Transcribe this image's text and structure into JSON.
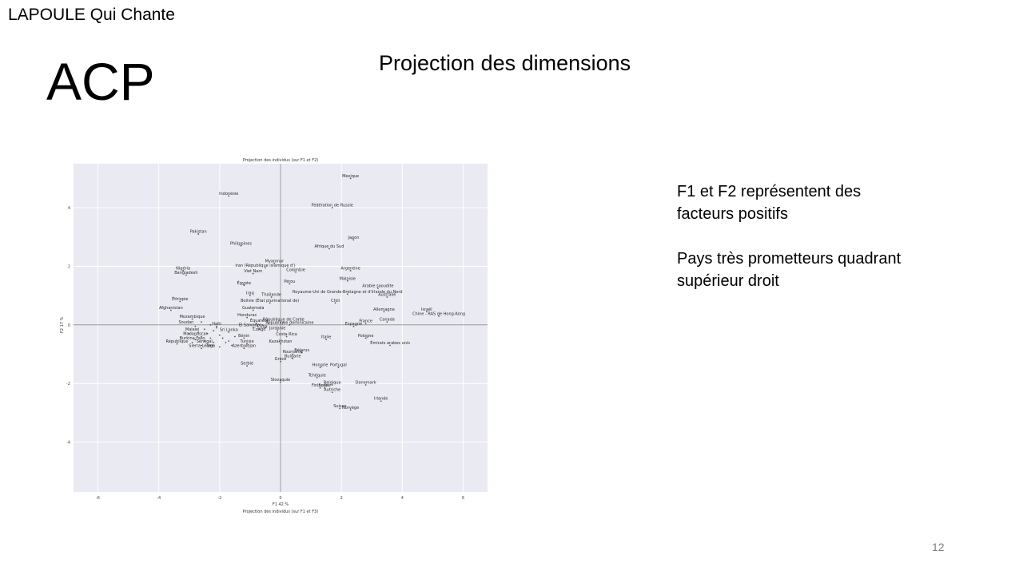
{
  "header": {
    "brand": "LAPOULE Qui Chante"
  },
  "slide": {
    "title": "ACP",
    "subtitle": "Projection des dimensions",
    "page_number": "12",
    "notes": {
      "line1": "F1 et F2 représentent des facteurs positifs",
      "line2": "Pays très prometteurs quadrant supérieur droit"
    }
  },
  "chart_data": {
    "type": "scatter",
    "title": "Projection des individus (sur F1 et F2)",
    "next_title": "Projection des individus (sur F1 et F3)",
    "xlabel": "F1 42 %",
    "ylabel": "F2 17 %",
    "xlim": [
      -6.8,
      6.8
    ],
    "ylim": [
      -5.7,
      5.5
    ],
    "xticks": [
      -6,
      -4,
      -2,
      0,
      2,
      4,
      6
    ],
    "yticks": [
      -4,
      -2,
      0,
      2,
      4
    ],
    "grid": true,
    "background": "#eaeaf2",
    "points": [
      {
        "label": "Mexique",
        "x": 2.3,
        "y": 5.0
      },
      {
        "label": "Indonésie",
        "x": -1.7,
        "y": 4.4
      },
      {
        "label": "Fédération de Russie",
        "x": 1.7,
        "y": 4.0
      },
      {
        "label": "Pakistan",
        "x": -2.7,
        "y": 3.1
      },
      {
        "label": "Japon",
        "x": 2.4,
        "y": 2.9
      },
      {
        "label": "Philippines",
        "x": -1.3,
        "y": 2.7
      },
      {
        "label": "Afrique du Sud",
        "x": 1.6,
        "y": 2.6
      },
      {
        "label": "Myanmar",
        "x": -0.2,
        "y": 2.1
      },
      {
        "label": "Iran (République islamique d')",
        "x": -0.5,
        "y": 1.95
      },
      {
        "label": "Argentine",
        "x": 2.3,
        "y": 1.85
      },
      {
        "label": "Nigéria",
        "x": -3.2,
        "y": 1.85
      },
      {
        "label": "Colombie",
        "x": 0.5,
        "y": 1.8
      },
      {
        "label": "Viet Nam",
        "x": -0.9,
        "y": 1.75
      },
      {
        "label": "Bangladesh",
        "x": -3.1,
        "y": 1.7
      },
      {
        "label": "Malaisie",
        "x": 2.2,
        "y": 1.5
      },
      {
        "label": "Pérou",
        "x": 0.3,
        "y": 1.4
      },
      {
        "label": "Égypte",
        "x": -1.2,
        "y": 1.35
      },
      {
        "label": "Arabie saoudite",
        "x": 3.2,
        "y": 1.25
      },
      {
        "label": "Royaume-Uni de Grande-Bretagne et d'Irlande du Nord",
        "x": 2.2,
        "y": 1.05
      },
      {
        "label": "Iraq",
        "x": -1.0,
        "y": 1.0
      },
      {
        "label": "Australie",
        "x": 3.5,
        "y": 0.95
      },
      {
        "label": "Thaïlande",
        "x": -0.3,
        "y": 0.95
      },
      {
        "label": "Éthiopie",
        "x": -3.3,
        "y": 0.8
      },
      {
        "label": "Bolivie (État plurinational de)",
        "x": -0.35,
        "y": 0.75
      },
      {
        "label": "Chili",
        "x": 1.8,
        "y": 0.75
      },
      {
        "label": "Guatemala",
        "x": -0.9,
        "y": 0.5
      },
      {
        "label": "Afghanistan",
        "x": -3.6,
        "y": 0.5
      },
      {
        "label": "Allemagne",
        "x": 3.4,
        "y": 0.45
      },
      {
        "label": "Israël",
        "x": 4.8,
        "y": 0.45
      },
      {
        "label": "Chine - RAS de Hong-Kong",
        "x": 5.2,
        "y": 0.3
      },
      {
        "label": "Honduras",
        "x": -1.1,
        "y": 0.25
      },
      {
        "label": "Mozambique",
        "x": -2.9,
        "y": 0.2
      },
      {
        "label": "Canada",
        "x": 3.5,
        "y": 0.1
      },
      {
        "label": "République de Corée",
        "x": 0.1,
        "y": 0.1
      },
      {
        "label": "France",
        "x": 2.8,
        "y": 0.05
      },
      {
        "label": "République dominicaine",
        "x": 0.3,
        "y": 0.0
      },
      {
        "label": "Espagne",
        "x": 2.4,
        "y": -0.05
      },
      {
        "label": "Haïti",
        "x": -2.1,
        "y": -0.05
      },
      {
        "label": "Jordanie",
        "x": -0.1,
        "y": -0.2
      },
      {
        "label": "Sri Lanka",
        "x": -1.7,
        "y": -0.25
      },
      {
        "label": "Costa Rica",
        "x": 0.2,
        "y": -0.4
      },
      {
        "label": "Bénin",
        "x": -1.2,
        "y": -0.45
      },
      {
        "label": "Pologne",
        "x": 2.8,
        "y": -0.45
      },
      {
        "label": "Italie",
        "x": 1.5,
        "y": -0.5
      },
      {
        "label": "Tunisie",
        "x": -1.1,
        "y": -0.65
      },
      {
        "label": "Kazakhstan",
        "x": 0.0,
        "y": -0.65
      },
      {
        "label": "Émirats arabes unis",
        "x": 3.6,
        "y": -0.7
      },
      {
        "label": "République",
        "x": -3.4,
        "y": -0.65
      },
      {
        "label": "Azerbaïdjan",
        "x": -1.2,
        "y": -0.8
      },
      {
        "label": "Sierra Leone",
        "x": -2.6,
        "y": -0.8
      },
      {
        "label": "Bélarus",
        "x": 0.7,
        "y": -0.95
      },
      {
        "label": "Roumanie",
        "x": 0.4,
        "y": -1.0
      },
      {
        "label": "Bulgarie",
        "x": 0.4,
        "y": -1.15
      },
      {
        "label": "Grèce",
        "x": 0.0,
        "y": -1.25
      },
      {
        "label": "Serbie",
        "x": -1.1,
        "y": -1.4
      },
      {
        "label": "Hongrie",
        "x": 1.3,
        "y": -1.45
      },
      {
        "label": "Portugal",
        "x": 1.9,
        "y": -1.45
      },
      {
        "label": "Tchéquie",
        "x": 1.2,
        "y": -1.8
      },
      {
        "label": "Slovaquie",
        "x": 0.0,
        "y": -1.95
      },
      {
        "label": "Belgique",
        "x": 1.7,
        "y": -2.05
      },
      {
        "label": "Danemark",
        "x": 2.8,
        "y": -2.05
      },
      {
        "label": "Finlande",
        "x": 1.3,
        "y": -2.15
      },
      {
        "label": "Suède",
        "x": 1.45,
        "y": -2.15
      },
      {
        "label": "Autriche",
        "x": 1.7,
        "y": -2.3
      },
      {
        "label": "Irlande",
        "x": 3.3,
        "y": -2.6
      },
      {
        "label": "Suisse",
        "x": 1.95,
        "y": -2.85
      },
      {
        "label": "Norvège",
        "x": 2.3,
        "y": -2.9
      }
    ],
    "cluster": [
      [
        -2.6,
        0.1
      ],
      [
        -2.3,
        0.0
      ],
      [
        -2.8,
        -0.05
      ],
      [
        -2.5,
        -0.15
      ],
      [
        -2.2,
        -0.2
      ],
      [
        -2.7,
        -0.25
      ],
      [
        -2.4,
        -0.3
      ],
      [
        -2.0,
        -0.35
      ],
      [
        -2.6,
        -0.4
      ],
      [
        -2.3,
        -0.45
      ],
      [
        -1.9,
        -0.45
      ],
      [
        -2.8,
        -0.5
      ],
      [
        -2.5,
        -0.55
      ],
      [
        -2.2,
        -0.6
      ],
      [
        -1.8,
        -0.6
      ],
      [
        -2.6,
        -0.7
      ],
      [
        -2.3,
        -0.7
      ],
      [
        -2.0,
        -0.75
      ],
      [
        -1.6,
        -0.7
      ],
      [
        -2.9,
        -0.6
      ],
      [
        -1.5,
        -0.4
      ],
      [
        -1.7,
        -0.55
      ],
      [
        -3.0,
        -0.3
      ],
      [
        -2.1,
        -0.1
      ],
      [
        -0.9,
        -0.1
      ],
      [
        -0.6,
        0.0
      ],
      [
        -0.5,
        -0.1
      ],
      [
        -0.7,
        -0.15
      ],
      [
        -0.4,
        0.05
      ],
      [
        -0.8,
        0.05
      ]
    ],
    "cluster_labels": [
      {
        "label": "Soudan",
        "x": -3.1,
        "y": 0.05
      },
      {
        "label": "Malawi",
        "x": -2.9,
        "y": -0.2
      },
      {
        "label": "Madagascar",
        "x": -2.8,
        "y": -0.35
      },
      {
        "label": "Burkina Faso",
        "x": -2.9,
        "y": -0.5
      },
      {
        "label": "Sénégal",
        "x": -2.5,
        "y": -0.6
      },
      {
        "label": "Togo",
        "x": -2.3,
        "y": -0.75
      },
      {
        "label": "Équateur",
        "x": -0.7,
        "y": 0.1
      },
      {
        "label": "El Salvador",
        "x": -1.0,
        "y": -0.05
      },
      {
        "label": "Cuba",
        "x": -0.6,
        "y": -0.1
      },
      {
        "label": "Congo",
        "x": -0.7,
        "y": -0.2
      }
    ]
  }
}
